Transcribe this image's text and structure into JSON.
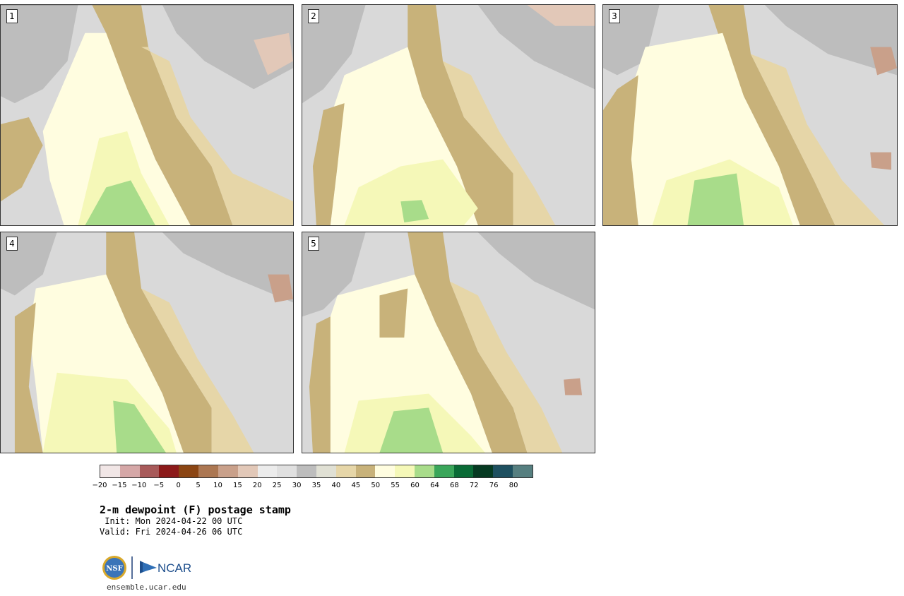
{
  "panels": [
    {
      "label": "1"
    },
    {
      "label": "2"
    },
    {
      "label": "3"
    },
    {
      "label": "4"
    },
    {
      "label": "5"
    }
  ],
  "legend": {
    "colors": [
      "#f1e6e6",
      "#d5a7a7",
      "#a85a5a",
      "#8c1a1a",
      "#8b4513",
      "#ac7752",
      "#c9a08a",
      "#e2c8b8",
      "#ececec",
      "#e0e0e0",
      "#bdbdbd",
      "#e0e0d4",
      "#e6d6a8",
      "#c8b27a",
      "#fffde0",
      "#f5f8b8",
      "#a8dc8a",
      "#3aa65a",
      "#0a6b36",
      "#063a22",
      "#1e5060",
      "#567f80"
    ],
    "ticks": [
      "−20",
      "−15",
      "−10",
      "−5",
      "0",
      "5",
      "10",
      "15",
      "20",
      "25",
      "30",
      "35",
      "40",
      "45",
      "50",
      "55",
      "60",
      "64",
      "68",
      "72",
      "76",
      "80"
    ]
  },
  "title": "2-m dewpoint (F) postage stamp",
  "init": " Init: Mon 2024-04-22 00 UTC",
  "valid": "Valid: Fri 2024-04-26 06 UTC",
  "logos": {
    "nsf": "NSF",
    "ncar": "NCAR"
  },
  "site": "ensemble.ucar.edu"
}
